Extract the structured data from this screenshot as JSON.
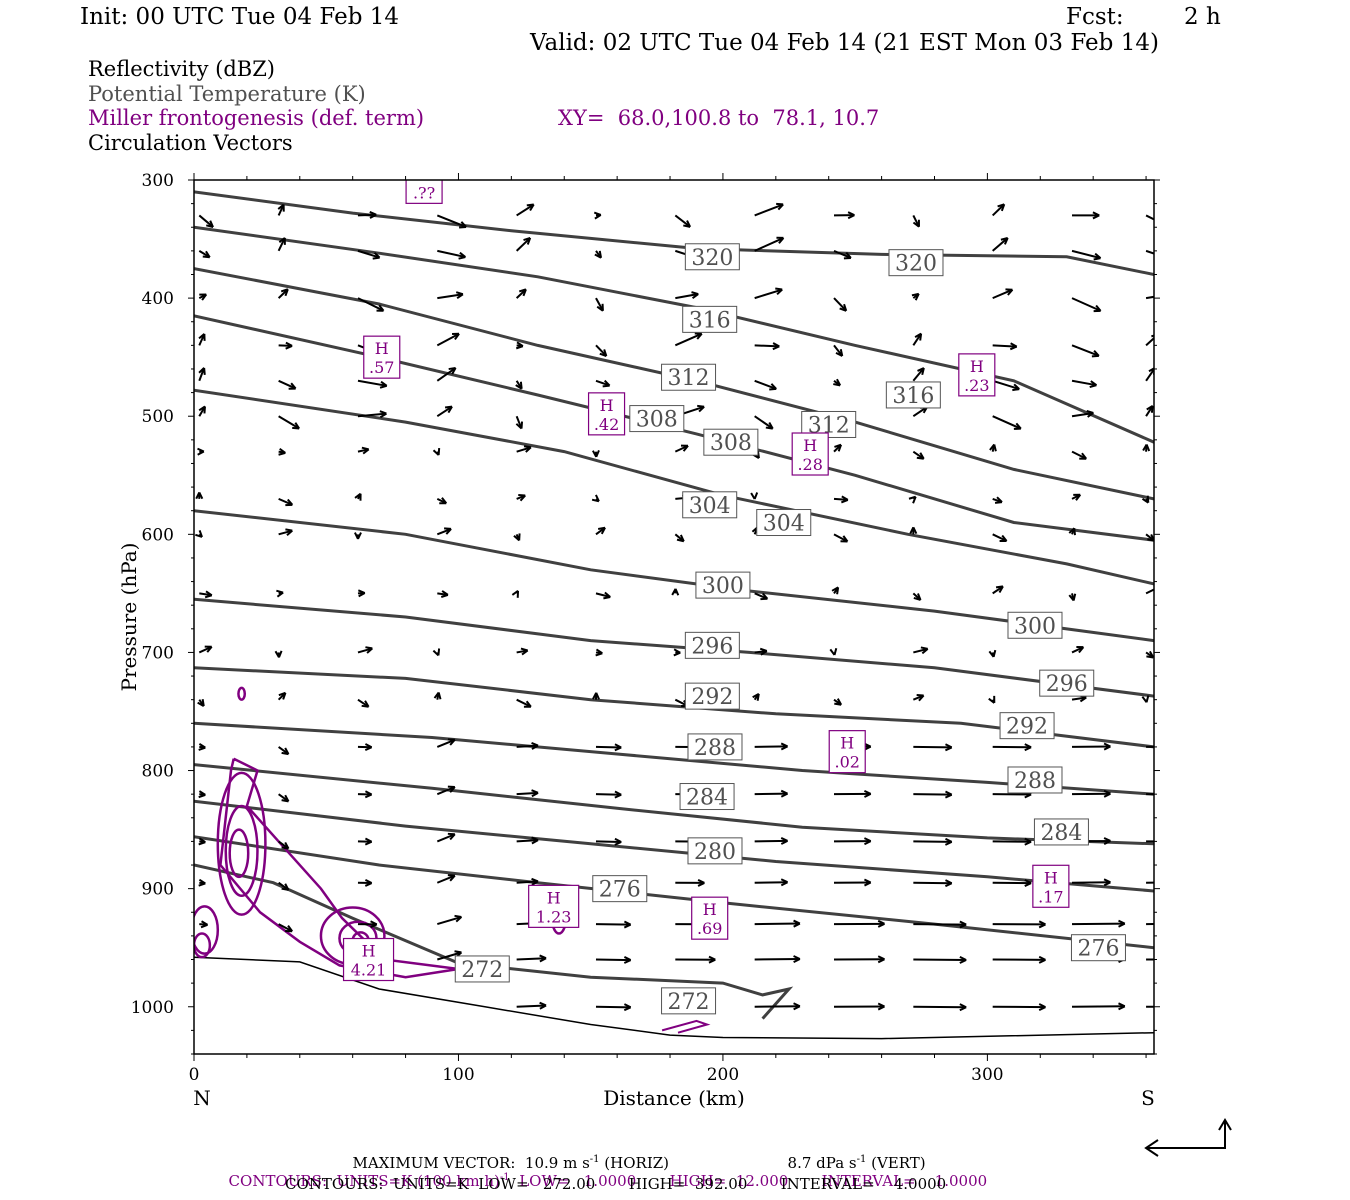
{
  "header": {
    "init": "Init: 00 UTC Tue 04 Feb 14",
    "fcst_label": "Fcst:",
    "fcst_value": "2 h",
    "valid": "Valid: 02 UTC Tue 04 Feb 14 (21 EST Mon 03 Feb 14)"
  },
  "fields": {
    "reflectivity": "Reflectivity (dBZ)",
    "theta": "Potential Temperature (K)",
    "frontogenesis": "Miller frontogenesis (def. term)",
    "xy": "XY=  68.0,100.8 to  78.1, 10.7",
    "vectors": "Circulation Vectors"
  },
  "colors": {
    "frontogenesis": "#800080",
    "theta": "#404040",
    "theta_label": "#505050",
    "axis": "#000000"
  },
  "axes": {
    "ylabel": "Pressure (hPa)",
    "xlabel": "Distance (km)",
    "left_end": "N",
    "right_end": "S"
  },
  "footer": {
    "max_vector": "MAXIMUM VECTOR:  10.9 m s",
    "max_vector_sup": "-1",
    "max_vector_horiz": " (HORIZ)",
    "max_vector_vert": "8.7 dPa s",
    "max_vector_vert_sup": "-1",
    "max_vector_vert_tail": " (VERT)",
    "contours_fg_a": "CONTOURS:  UNITS=K (100 km h)",
    "contours_fg_sup": "-1",
    "contours_fg_b": "  LOW=   1.0000       HIGH=  12.000       INTERVAL=    1.0000",
    "contours_theta": "CONTOURS:  UNITS=K  LOW=   272.00       HIGH=  392.00       INTERVAL=    4.0000"
  },
  "chart_data": {
    "type": "cross-section",
    "x_range": [
      0,
      363
    ],
    "y_range_hpa": [
      1040,
      300
    ],
    "x_ticks": [
      0,
      100,
      200,
      300
    ],
    "y_ticks": [
      300,
      400,
      500,
      600,
      700,
      800,
      900,
      1000
    ],
    "terrain_hpa": [
      [
        0,
        958
      ],
      [
        40,
        962
      ],
      [
        70,
        985
      ],
      [
        110,
        1000
      ],
      [
        150,
        1015
      ],
      [
        180,
        1024
      ],
      [
        200,
        1026
      ],
      [
        260,
        1027
      ],
      [
        363,
        1022
      ]
    ],
    "isentropes": [
      {
        "value": 320,
        "points": [
          [
            0,
            310
          ],
          [
            60,
            328
          ],
          [
            120,
            343
          ],
          [
            190,
            358
          ],
          [
            260,
            363
          ],
          [
            330,
            365
          ],
          [
            363,
            380
          ]
        ],
        "labels": [
          [
            196,
            365
          ],
          [
            273,
            370
          ]
        ]
      },
      {
        "value": 316,
        "points": [
          [
            0,
            340
          ],
          [
            70,
            362
          ],
          [
            130,
            382
          ],
          [
            190,
            408
          ],
          [
            250,
            440
          ],
          [
            310,
            470
          ],
          [
            363,
            522
          ]
        ],
        "labels": [
          [
            195,
            418
          ],
          [
            272,
            482
          ]
        ]
      },
      {
        "value": 312,
        "points": [
          [
            0,
            375
          ],
          [
            70,
            405
          ],
          [
            130,
            440
          ],
          [
            190,
            470
          ],
          [
            250,
            505
          ],
          [
            310,
            545
          ],
          [
            363,
            570
          ]
        ],
        "labels": [
          [
            187,
            467
          ],
          [
            240,
            507
          ]
        ]
      },
      {
        "value": 308,
        "points": [
          [
            0,
            415
          ],
          [
            70,
            450
          ],
          [
            130,
            482
          ],
          [
            190,
            515
          ],
          [
            250,
            550
          ],
          [
            310,
            590
          ],
          [
            363,
            605
          ]
        ],
        "labels": [
          [
            175,
            502
          ],
          [
            203,
            522
          ]
        ]
      },
      {
        "value": 304,
        "points": [
          [
            0,
            478
          ],
          [
            80,
            505
          ],
          [
            140,
            530
          ],
          [
            200,
            567
          ],
          [
            270,
            600
          ],
          [
            330,
            625
          ],
          [
            363,
            642
          ]
        ],
        "labels": [
          [
            195,
            575
          ],
          [
            223,
            590
          ]
        ]
      },
      {
        "value": 300,
        "points": [
          [
            0,
            580
          ],
          [
            80,
            600
          ],
          [
            150,
            630
          ],
          [
            210,
            648
          ],
          [
            280,
            665
          ],
          [
            363,
            690
          ]
        ],
        "labels": [
          [
            200,
            643
          ],
          [
            318,
            677
          ]
        ]
      },
      {
        "value": 296,
        "points": [
          [
            0,
            655
          ],
          [
            80,
            670
          ],
          [
            150,
            690
          ],
          [
            210,
            700
          ],
          [
            280,
            713
          ],
          [
            363,
            737
          ]
        ],
        "labels": [
          [
            196,
            694
          ],
          [
            330,
            726
          ]
        ]
      },
      {
        "value": 292,
        "points": [
          [
            0,
            713
          ],
          [
            80,
            722
          ],
          [
            150,
            740
          ],
          [
            220,
            752
          ],
          [
            290,
            760
          ],
          [
            363,
            780
          ]
        ],
        "labels": [
          [
            196,
            737
          ],
          [
            315,
            762
          ]
        ]
      },
      {
        "value": 288,
        "points": [
          [
            0,
            760
          ],
          [
            90,
            772
          ],
          [
            160,
            786
          ],
          [
            230,
            800
          ],
          [
            300,
            810
          ],
          [
            363,
            820
          ]
        ],
        "labels": [
          [
            197,
            780
          ],
          [
            318,
            808
          ]
        ]
      },
      {
        "value": 284,
        "points": [
          [
            0,
            795
          ],
          [
            90,
            815
          ],
          [
            160,
            832
          ],
          [
            230,
            848
          ],
          [
            300,
            857
          ],
          [
            363,
            862
          ]
        ],
        "labels": [
          [
            194,
            822
          ],
          [
            328,
            852
          ]
        ]
      },
      {
        "value": 280,
        "points": [
          [
            0,
            826
          ],
          [
            80,
            847
          ],
          [
            150,
            862
          ],
          [
            220,
            877
          ],
          [
            300,
            890
          ],
          [
            363,
            902
          ]
        ],
        "labels": [
          [
            197,
            868
          ]
        ]
      },
      {
        "value": 276,
        "points": [
          [
            0,
            856
          ],
          [
            70,
            880
          ],
          [
            130,
            895
          ],
          [
            200,
            912
          ],
          [
            280,
            930
          ],
          [
            363,
            950
          ]
        ],
        "labels": [
          [
            161,
            900
          ],
          [
            342,
            950
          ]
        ]
      },
      {
        "value": 272,
        "points": [
          [
            0,
            880
          ],
          [
            30,
            895
          ],
          [
            60,
            925
          ],
          [
            100,
            963
          ],
          [
            150,
            975
          ],
          [
            200,
            980
          ],
          [
            215,
            990
          ],
          [
            225,
            985
          ],
          [
            215,
            1010
          ]
        ],
        "labels": [
          [
            109,
            968
          ],
          [
            187,
            995
          ]
        ]
      }
    ],
    "frontogenesis_maxima": [
      {
        "label": "H",
        "value": ".??",
        "x": 87,
        "p": 302
      },
      {
        "label": "H",
        "value": ".57",
        "x": 71,
        "p": 450
      },
      {
        "label": "H",
        "value": ".23",
        "x": 296,
        "p": 465
      },
      {
        "label": "H",
        "value": ".42",
        "x": 156,
        "p": 498
      },
      {
        "label": "H",
        "value": ".28",
        "x": 233,
        "p": 532
      },
      {
        "label": "H",
        "value": ".02",
        "x": 247,
        "p": 784
      },
      {
        "label": "H",
        "value": ".17",
        "x": 324,
        "p": 898
      },
      {
        "label": "H",
        "value": "1.23",
        "x": 136,
        "p": 915
      },
      {
        "label": "H",
        "value": ".69",
        "x": 195,
        "p": 925
      },
      {
        "label": "H",
        "value": "4.21",
        "x": 66,
        "p": 960
      }
    ],
    "reference_vector_label": "MAXIMUM VECTOR"
  }
}
